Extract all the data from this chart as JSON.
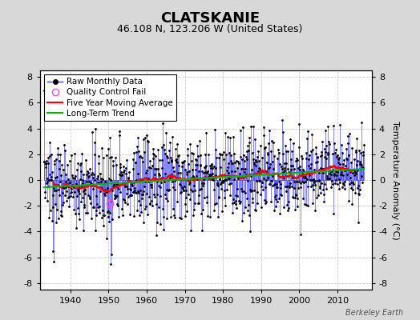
{
  "title": "CLATSKANIE",
  "subtitle": "46.108 N, 123.206 W (United States)",
  "ylabel": "Temperature Anomaly (°C)",
  "xlabel_years": [
    1940,
    1950,
    1960,
    1970,
    1980,
    1990,
    2000,
    2010
  ],
  "yticks": [
    -8,
    -6,
    -4,
    -2,
    0,
    2,
    4,
    6,
    8
  ],
  "ylim": [
    -8.5,
    8.5
  ],
  "xlim": [
    1932,
    2019
  ],
  "year_start": 1933.0,
  "n_months": 1008,
  "bg_color": "#d8d8d8",
  "plot_bg_color": "#ffffff",
  "raw_line_color": "#4444ff",
  "raw_marker_color": "#000000",
  "moving_avg_color": "#ff0000",
  "trend_color": "#00bb00",
  "qc_fail_color": "#ff44ff",
  "watermark": "Berkeley Earth",
  "seed": 137,
  "title_fontsize": 13,
  "subtitle_fontsize": 9,
  "tick_fontsize": 8,
  "ylabel_fontsize": 8,
  "legend_fontsize": 7.5,
  "watermark_fontsize": 7
}
